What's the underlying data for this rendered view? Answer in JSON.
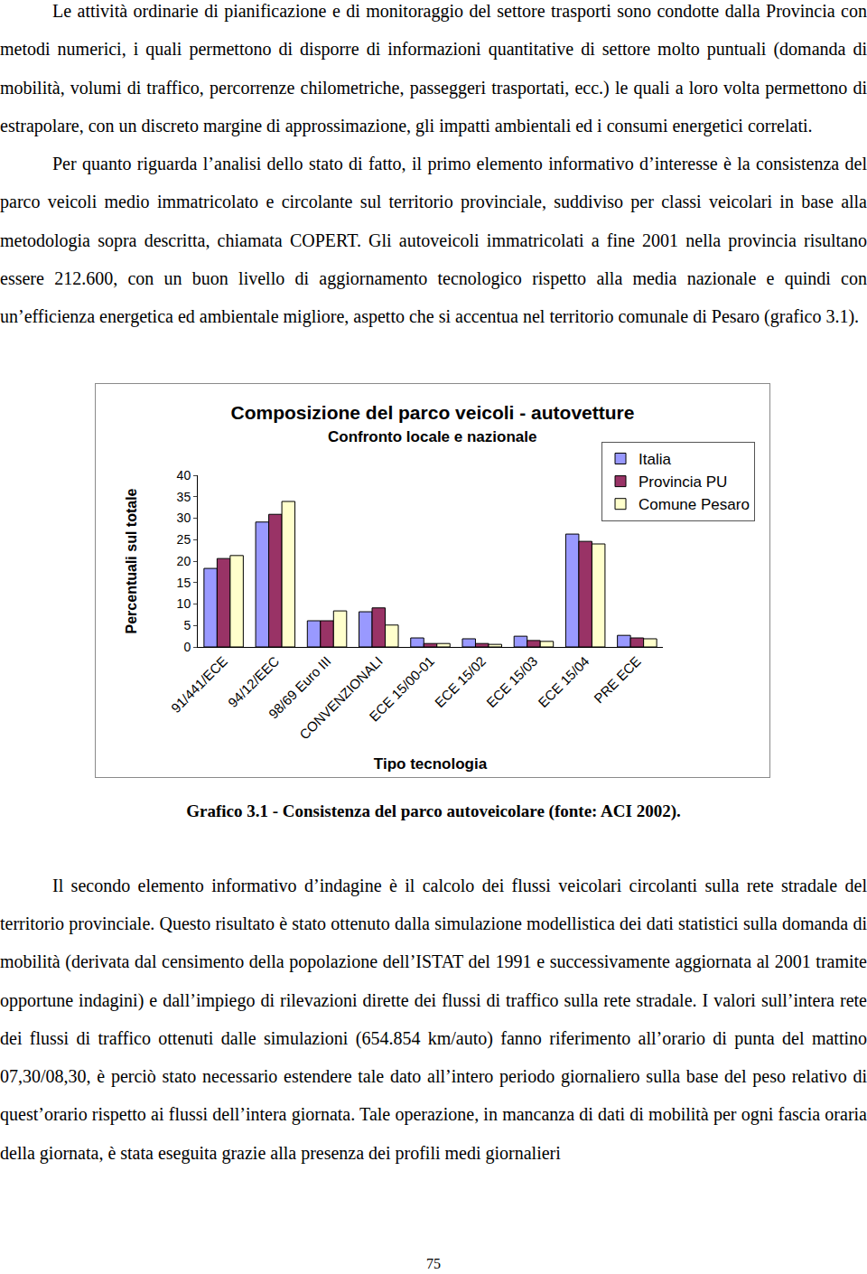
{
  "text_before": [
    "Le attività ordinarie di pianificazione e di monitoraggio del settore trasporti sono condotte dalla Provincia con metodi numerici, i quali permettono di disporre di informazioni quantitative di settore molto puntuali (domanda di mobilità, volumi di traffico, percorrenze chilometriche, passeggeri trasportati, ecc.) le quali a loro volta permettono di estrapolare, con un discreto margine di approssimazione, gli impatti ambientali ed i consumi energetici correlati.",
    "Per quanto riguarda l’analisi dello stato di fatto, il primo elemento informativo d’interesse è la consistenza del parco veicoli medio immatricolato e circolante sul territorio provinciale, suddiviso per classi veicolari in base alla metodologia sopra descritta, chiamata COPERT. Gli autoveicoli immatricolati a fine 2001 nella provincia risultano essere 212.600, con un buon livello di aggiornamento tecnologico rispetto alla media nazionale e quindi con un’efficienza energetica ed ambientale migliore, aspetto che si accentua nel territorio comunale di Pesaro (grafico 3.1)."
  ],
  "chart_data": {
    "type": "bar",
    "title": "Composizione del parco veicoli - autovetture",
    "subtitle": "Confronto locale e nazionale",
    "x_label": "Tipo tecnologia",
    "y_label": "Percentuali sul totale",
    "categories": [
      "91/441/ECE",
      "94/12/EEC",
      "98/69 Euro III",
      "CONVENZIONALI",
      "ECE 15/00-01",
      "ECE 15/02",
      "ECE 15/03",
      "ECE 15/04",
      "PRE ECE"
    ],
    "series": [
      {
        "name": "Italia",
        "color": "#9999ff",
        "values": [
          18.3,
          29.1,
          6.1,
          8.2,
          2.1,
          1.9,
          2.5,
          26.3,
          2.7
        ]
      },
      {
        "name": "Provincia PU",
        "color": "#993366",
        "values": [
          20.6,
          30.9,
          6.1,
          9.1,
          0.8,
          0.8,
          1.5,
          24.6,
          2.1
        ]
      },
      {
        "name": "Comune Pesaro",
        "color": "#ffffcc",
        "values": [
          21.3,
          33.9,
          8.4,
          5.1,
          0.8,
          0.6,
          1.3,
          24.0,
          1.9
        ]
      }
    ],
    "ylim": [
      0,
      40
    ],
    "yticks": [
      0,
      5,
      10,
      15,
      20,
      25,
      30,
      35,
      40
    ],
    "grid": false,
    "legend": "top right"
  },
  "caption": "Grafico 3.1 - Consistenza del parco autoveicolare (fonte: ACI 2002).",
  "text_after": [
    "Il secondo elemento informativo d’indagine è il calcolo dei flussi veicolari circolanti sulla rete stradale del territorio provinciale. Questo risultato è stato ottenuto dalla simulazione modellistica dei dati statistici sulla domanda di mobilità (derivata dal censimento della popolazione dell’ISTAT del 1991 e successivamente aggiornata al 2001 tramite opportune indagini) e dall’impiego di rilevazioni dirette dei flussi di traffico sulla rete stradale. I valori sull’intera rete dei flussi di traffico ottenuti dalle simulazioni (654.854 km/auto) fanno riferimento all’orario di punta del mattino 07,30/08,30, è perciò stato necessario estendere tale dato all’intero periodo giornaliero sulla base del peso relativo di quest’orario rispetto ai flussi dell’intera giornata. Tale operazione, in mancanza di dati di mobilità per ogni fascia oraria della giornata, è stata eseguita grazie alla presenza dei profili medi giornalieri"
  ],
  "page_number": 75
}
